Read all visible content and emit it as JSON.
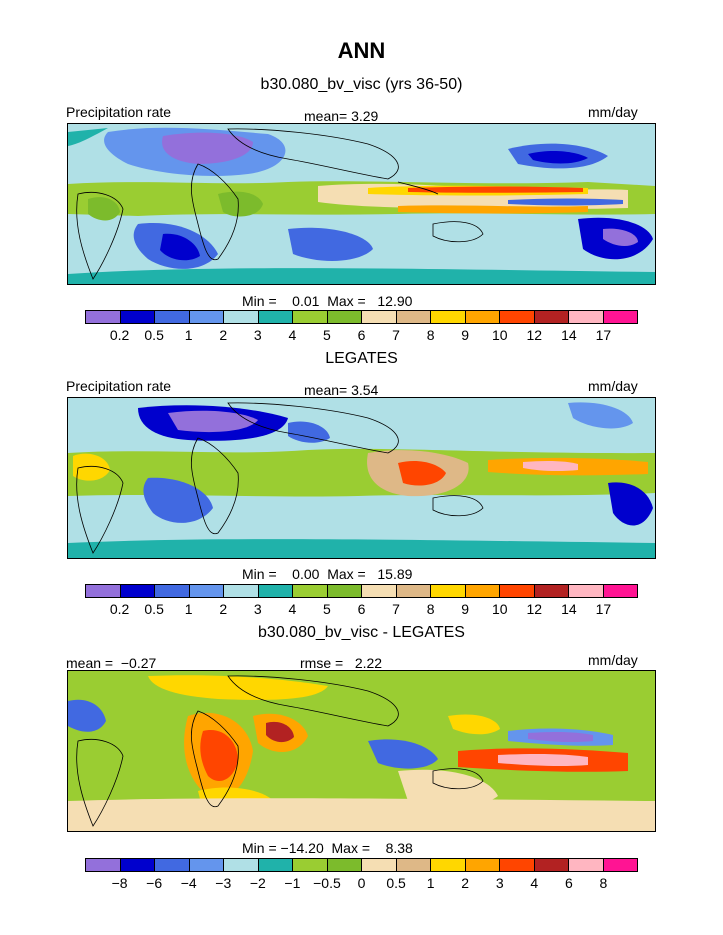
{
  "title": "ANN",
  "palette_colors": [
    "#9370db",
    "#0000cd",
    "#4169e1",
    "#6495ed",
    "#b0e0e6",
    "#20b2aa",
    "#9acd32",
    "#7cbb2c",
    "#f5deb3",
    "#deb887",
    "#ffd700",
    "#ffa500",
    "#ff4500",
    "#b22222",
    "#ffb6c1",
    "#ff1493"
  ],
  "chart_data": [
    {
      "type": "heatmap",
      "title": "b30.080_bv_visc (yrs 36-50)",
      "left_label": "Precipitation rate",
      "center_label": "mean=   3.29",
      "right_label": "mm/day",
      "min_max_text": "Min =    0.01  Max =   12.90",
      "colorbar_ticks": [
        "0.2",
        "0.5",
        "1",
        "2",
        "3",
        "4",
        "5",
        "6",
        "7",
        "8",
        "9",
        "10",
        "12",
        "14",
        "17"
      ]
    },
    {
      "type": "heatmap",
      "title": "LEGATES",
      "left_label": "Precipitation rate",
      "center_label": "mean=   3.54",
      "right_label": "mm/day",
      "min_max_text": "Min =    0.00  Max =   15.89",
      "colorbar_ticks": [
        "0.2",
        "0.5",
        "1",
        "2",
        "3",
        "4",
        "5",
        "6",
        "7",
        "8",
        "9",
        "10",
        "12",
        "14",
        "17"
      ]
    },
    {
      "type": "heatmap",
      "title": "b30.080_bv_visc - LEGATES",
      "left_label": "mean =  −0.27",
      "center_label": "rmse =   2.22",
      "right_label": "mm/day",
      "min_max_text": "Min = −14.20  Max =    8.38",
      "colorbar_ticks": [
        "−8",
        "−6",
        "−4",
        "−3",
        "−2",
        "−1",
        "−0.5",
        "0",
        "0.5",
        "1",
        "2",
        "3",
        "4",
        "6",
        "8"
      ]
    }
  ]
}
